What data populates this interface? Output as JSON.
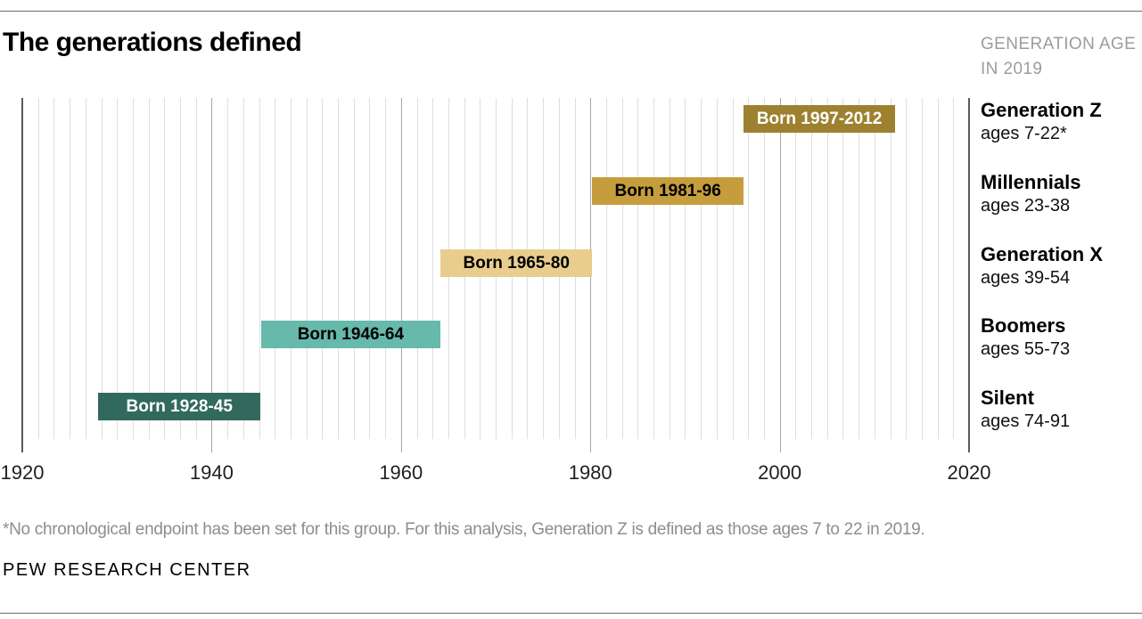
{
  "header": {
    "title": "The generations defined",
    "note_line1": "GENERATION AGE",
    "note_line2": "IN 2019"
  },
  "chart_data": {
    "type": "bar",
    "subtype": "horizontal-timeline",
    "title": "The generations defined",
    "x_axis": {
      "range": [
        1920,
        2020
      ],
      "ticks": [
        1920,
        1940,
        1960,
        1980,
        2000,
        2020
      ],
      "minor_grid_intervals_per_major": 12,
      "grid": "on"
    },
    "legend_position": "right",
    "series": [
      {
        "name": "Generation Z",
        "age_label": "ages 7-22*",
        "bar_label": "Born 1997-2012",
        "birth_start": 1997,
        "birth_end": 2012,
        "color": "#9e8130",
        "label_color": "#ffffff"
      },
      {
        "name": "Millennials",
        "age_label": "ages 23-38",
        "bar_label": "Born 1981-96",
        "birth_start": 1981,
        "birth_end": 1996,
        "color": "#c59d3c",
        "label_color": "#000000"
      },
      {
        "name": "Generation X",
        "age_label": "ages 39-54",
        "bar_label": "Born 1965-80",
        "birth_start": 1965,
        "birth_end": 1980,
        "color": "#e8cd8e",
        "label_color": "#000000"
      },
      {
        "name": "Boomers",
        "age_label": "ages 55-73",
        "bar_label": "Born 1946-64",
        "birth_start": 1946,
        "birth_end": 1964,
        "color": "#66b9ab",
        "label_color": "#000000"
      },
      {
        "name": "Silent",
        "age_label": "ages 74-91",
        "bar_label": "Born 1928-45",
        "birth_start": 1928,
        "birth_end": 1945,
        "color": "#316a5c",
        "label_color": "#ffffff"
      }
    ],
    "colors": {
      "grid_minor": "#dedede",
      "grid_major": "#a6a6a6",
      "grid_edge": "#5a5a5a"
    }
  },
  "footnote": "*No chronological endpoint has been set for this group. For this analysis, Generation Z is defined as those ages 7 to 22 in 2019.",
  "source": "PEW RESEARCH CENTER"
}
